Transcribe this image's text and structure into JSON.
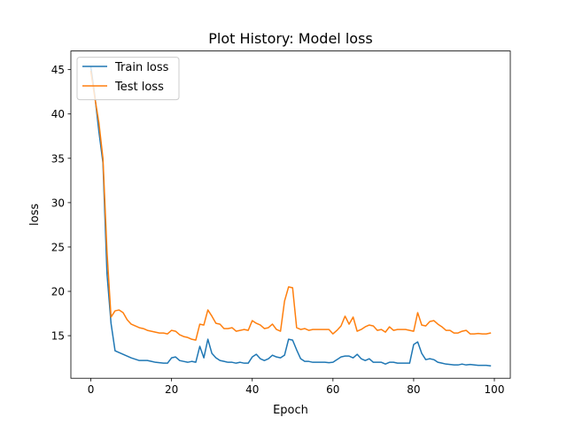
{
  "chart_data": {
    "type": "line",
    "title": "Plot History: Model loss",
    "xlabel": "Epoch",
    "ylabel": "loss",
    "xlim": [
      -4.95,
      103.95
    ],
    "ylim": [
      10.2,
      47.1
    ],
    "xticks": [
      0,
      20,
      40,
      60,
      80,
      100
    ],
    "yticks": [
      15,
      20,
      25,
      30,
      35,
      40,
      45
    ],
    "grid": false,
    "legend_position": "top-left",
    "x": [
      0,
      1,
      2,
      3,
      4,
      5,
      6,
      7,
      8,
      9,
      10,
      11,
      12,
      13,
      14,
      15,
      16,
      17,
      18,
      19,
      20,
      21,
      22,
      23,
      24,
      25,
      26,
      27,
      28,
      29,
      30,
      31,
      32,
      33,
      34,
      35,
      36,
      37,
      38,
      39,
      40,
      41,
      42,
      43,
      44,
      45,
      46,
      47,
      48,
      49,
      50,
      51,
      52,
      53,
      54,
      55,
      56,
      57,
      58,
      59,
      60,
      61,
      62,
      63,
      64,
      65,
      66,
      67,
      68,
      69,
      70,
      71,
      72,
      73,
      74,
      75,
      76,
      77,
      78,
      79,
      80,
      81,
      82,
      83,
      84,
      85,
      86,
      87,
      88,
      89,
      90,
      91,
      92,
      93,
      94,
      95,
      96,
      97,
      98,
      99
    ],
    "series": [
      {
        "name": "Train loss",
        "color": "#1f77b4",
        "values": [
          45.3,
          42.0,
          38.0,
          34.5,
          22.0,
          16.4,
          13.3,
          13.1,
          12.9,
          12.7,
          12.5,
          12.35,
          12.2,
          12.2,
          12.2,
          12.1,
          12.0,
          11.95,
          11.9,
          11.9,
          12.5,
          12.6,
          12.2,
          12.1,
          12.0,
          12.1,
          12.0,
          13.8,
          12.5,
          14.6,
          13.0,
          12.5,
          12.2,
          12.1,
          12.0,
          12.0,
          11.9,
          12.0,
          11.9,
          11.9,
          12.6,
          12.9,
          12.4,
          12.2,
          12.4,
          12.8,
          12.6,
          12.5,
          12.8,
          14.6,
          14.5,
          13.4,
          12.4,
          12.1,
          12.1,
          12.0,
          12.0,
          12.0,
          12.0,
          11.95,
          12.0,
          12.3,
          12.6,
          12.7,
          12.7,
          12.5,
          12.9,
          12.4,
          12.2,
          12.4,
          12.0,
          12.0,
          12.0,
          11.8,
          12.0,
          12.0,
          11.9,
          11.9,
          11.9,
          11.9,
          14.0,
          14.3,
          13.0,
          12.3,
          12.4,
          12.3,
          12.0,
          11.9,
          11.8,
          11.75,
          11.7,
          11.7,
          11.8,
          11.7,
          11.75,
          11.7,
          11.65,
          11.65,
          11.65,
          11.6
        ]
      },
      {
        "name": "Test loss",
        "color": "#ff7f0e",
        "values": [
          44.8,
          41.8,
          39.0,
          35.0,
          24.5,
          17.1,
          17.8,
          17.9,
          17.6,
          16.8,
          16.3,
          16.1,
          15.9,
          15.8,
          15.6,
          15.5,
          15.4,
          15.3,
          15.3,
          15.2,
          15.6,
          15.5,
          15.1,
          14.9,
          14.8,
          14.6,
          14.5,
          16.3,
          16.2,
          17.9,
          17.2,
          16.4,
          16.3,
          15.8,
          15.8,
          15.9,
          15.5,
          15.6,
          15.7,
          15.6,
          16.7,
          16.4,
          16.2,
          15.8,
          15.9,
          16.3,
          15.7,
          15.5,
          18.9,
          20.5,
          20.4,
          15.9,
          15.7,
          15.8,
          15.6,
          15.7,
          15.7,
          15.7,
          15.7,
          15.7,
          15.2,
          15.6,
          16.1,
          17.2,
          16.3,
          17.1,
          15.5,
          15.7,
          16.0,
          16.2,
          16.1,
          15.6,
          15.7,
          15.4,
          16.0,
          15.6,
          15.7,
          15.7,
          15.7,
          15.6,
          15.5,
          17.6,
          16.2,
          16.1,
          16.6,
          16.7,
          16.3,
          16.0,
          15.6,
          15.6,
          15.3,
          15.3,
          15.5,
          15.6,
          15.2,
          15.2,
          15.25,
          15.2,
          15.2,
          15.3
        ]
      }
    ]
  }
}
